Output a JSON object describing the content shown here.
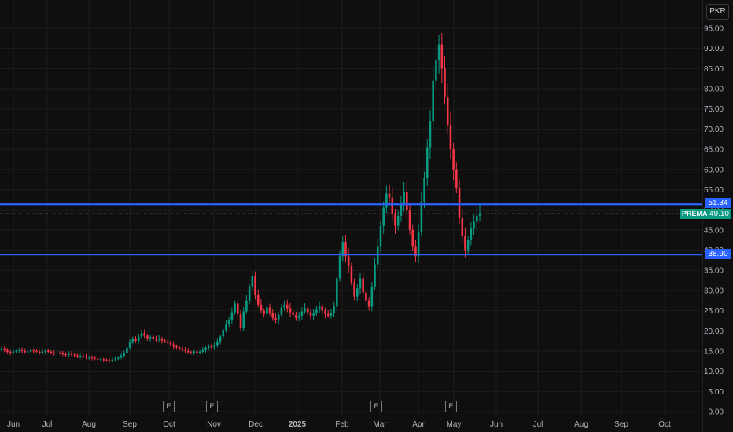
{
  "currency": "PKR",
  "chart_data": {
    "type": "candlestick",
    "symbol": "PREMA",
    "y_ticks": [
      "95.00",
      "90.00",
      "85.00",
      "80.00",
      "75.00",
      "70.00",
      "65.00",
      "60.00",
      "55.00",
      "50.00",
      "45.00",
      "40.00",
      "35.00",
      "30.00",
      "25.00",
      "20.00",
      "15.00",
      "10.00",
      "5.00",
      "0.00"
    ],
    "x_ticks": [
      "Jun",
      "Jul",
      "Aug",
      "Sep",
      "Oct",
      "Nov",
      "Dec",
      "2025",
      "Feb",
      "Mar",
      "Apr",
      "May",
      "Jun",
      "Jul",
      "Aug",
      "Sep",
      "Oct"
    ],
    "ylim": [
      0,
      97
    ],
    "levels": [
      {
        "label": "51.34",
        "value": 51.34,
        "color": "#2962ff"
      },
      {
        "label": "38.90",
        "value": 38.9,
        "color": "#2962ff"
      }
    ],
    "last_price": {
      "label": "49.10",
      "value": 49.1,
      "ticker": "PREMA",
      "color": "#089981"
    },
    "earnings_markers": [
      "E",
      "E",
      "E",
      "E"
    ],
    "up_color": "#089981",
    "down_color": "#f23645",
    "closes": [
      15.6,
      15.2,
      14.8,
      14.6,
      14.9,
      15.1,
      15.3,
      15.0,
      14.7,
      14.9,
      15.2,
      15.0,
      14.8,
      14.6,
      14.9,
      15.1,
      14.8,
      14.6,
      14.4,
      14.6,
      14.5,
      14.2,
      14.0,
      14.3,
      14.1,
      13.9,
      13.7,
      13.8,
      13.6,
      13.4,
      13.5,
      13.3,
      13.1,
      12.9,
      13.0,
      12.8,
      12.7,
      12.6,
      12.9,
      13.1,
      13.4,
      13.9,
      14.6,
      15.8,
      17.2,
      18.1,
      17.6,
      18.6,
      19.4,
      18.8,
      18.2,
      18.5,
      18.0,
      17.8,
      18.1,
      17.6,
      17.4,
      17.0,
      16.6,
      16.2,
      15.9,
      15.6,
      15.3,
      15.0,
      14.7,
      14.6,
      14.9,
      14.5,
      14.8,
      15.2,
      15.8,
      16.2,
      15.9,
      16.5,
      17.4,
      18.6,
      20.2,
      21.8,
      22.6,
      24.6,
      26.8,
      24.2,
      20.8,
      24.8,
      27.5,
      31.0,
      33.5,
      29.0,
      26.5,
      25.0,
      24.2,
      25.8,
      24.4,
      23.2,
      22.8,
      24.0,
      25.8,
      26.5,
      25.6,
      24.6,
      24.0,
      23.2,
      23.8,
      24.8,
      25.6,
      24.6,
      23.8,
      24.4,
      25.2,
      26.0,
      25.0,
      24.2,
      23.8,
      24.4,
      26.0,
      33.0,
      38.5,
      42.0,
      38.5,
      36.0,
      32.0,
      28.5,
      30.5,
      33.0,
      29.5,
      27.5,
      26.0,
      31.0,
      36.5,
      41.0,
      46.0,
      50.5,
      54.0,
      53.0,
      49.0,
      46.0,
      48.5,
      51.5,
      54.5,
      50.0,
      45.0,
      41.0,
      38.5,
      44.5,
      52.0,
      58.0,
      65.5,
      72.0,
      82.0,
      87.0,
      91.0,
      85.0,
      78.0,
      71.0,
      65.0,
      60.0,
      55.5,
      48.0,
      43.5,
      40.0,
      42.5,
      45.5,
      47.0,
      48.5,
      49.1
    ]
  }
}
